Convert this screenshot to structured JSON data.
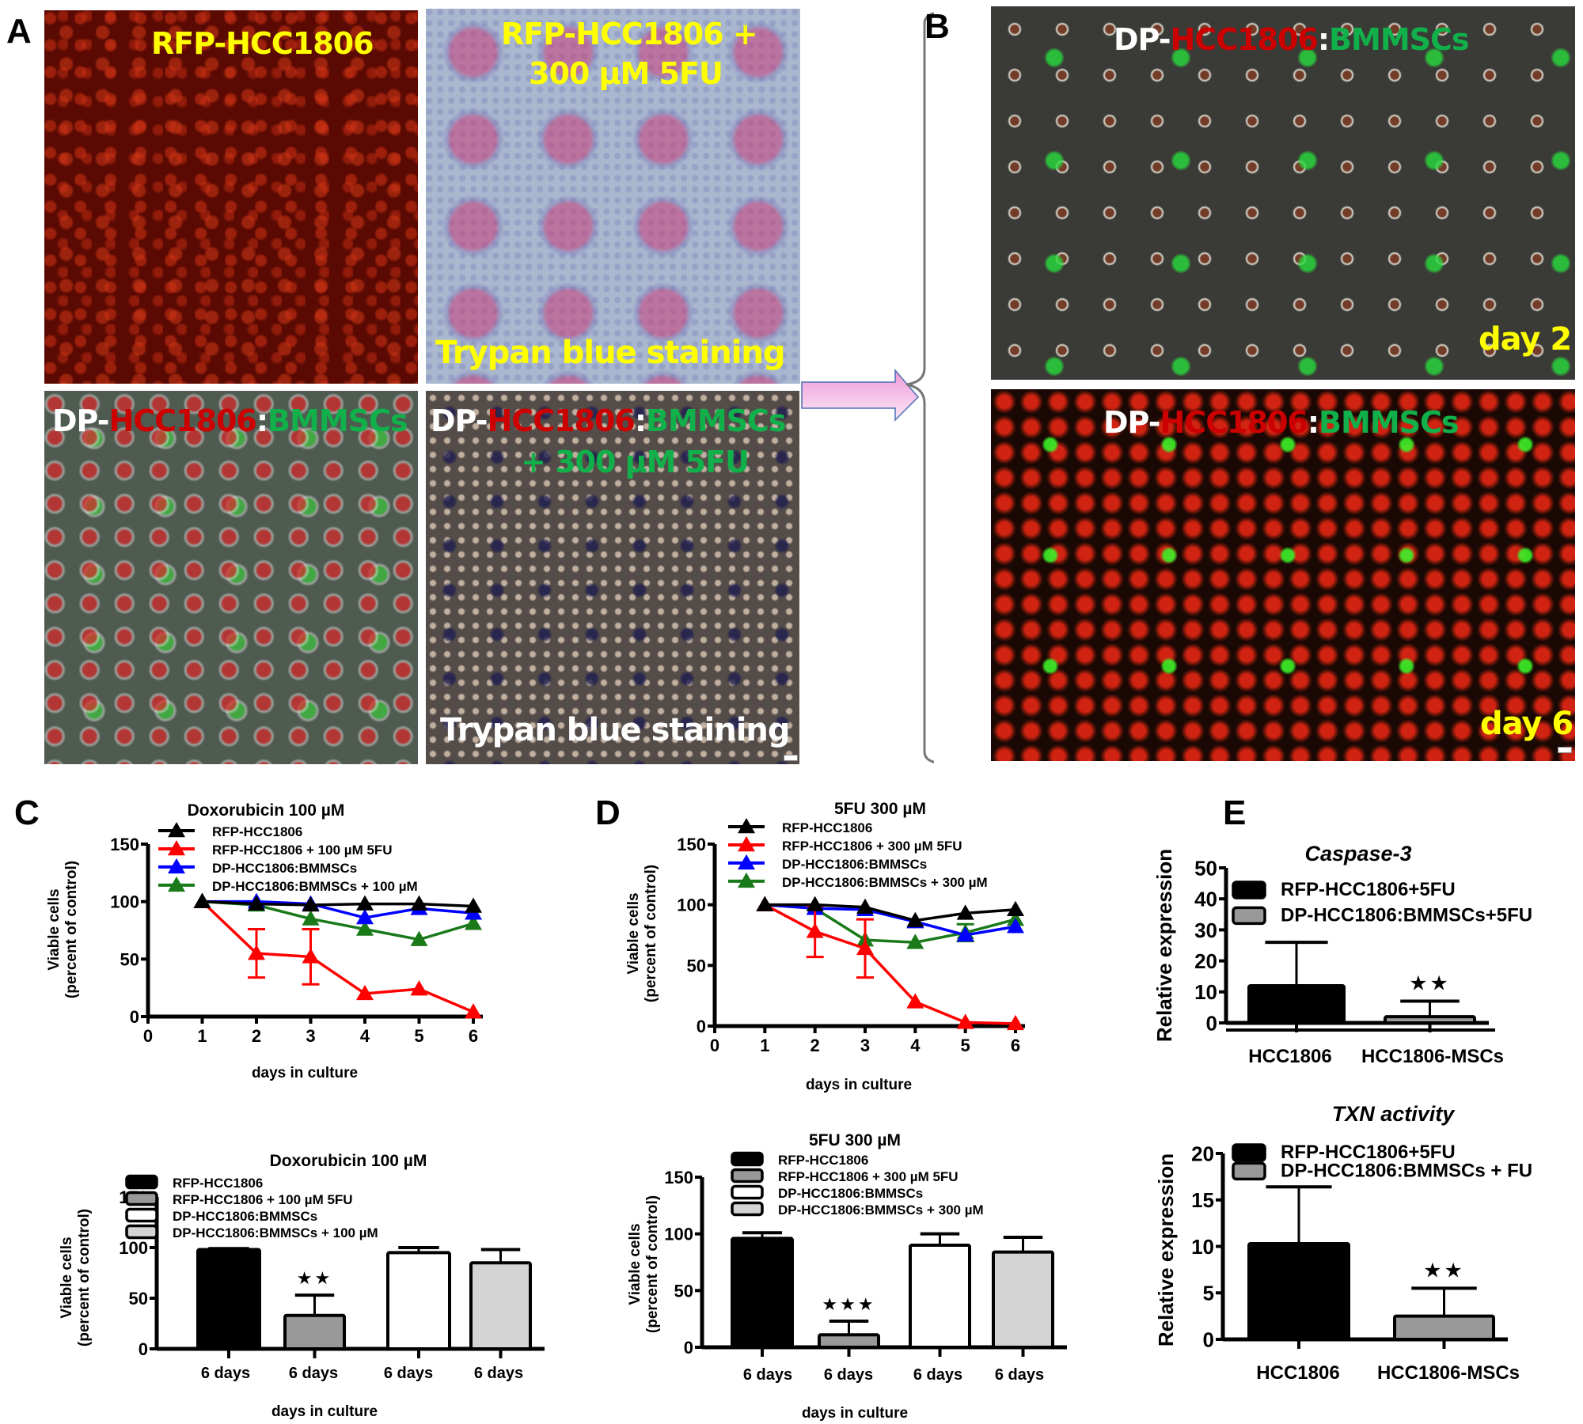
{
  "panels": {
    "A": {
      "letter": "A",
      "images": [
        {
          "title": "RFP-HCC1806",
          "footer": ""
        },
        {
          "title_line1": "RFP-HCC1806 +",
          "title_line2": "300 µM 5FU",
          "footer": "Trypan blue staining"
        },
        {
          "title_parts": [
            "DP-",
            "HCC1806",
            ":",
            "BMMSCs"
          ],
          "footer": ""
        },
        {
          "title_parts": [
            "DP-",
            "HCC1806",
            ":",
            "BMMSCs"
          ],
          "title_line2": "+ 300 µM 5FU",
          "footer": "Trypan blue staining"
        }
      ]
    },
    "B": {
      "letter": "B",
      "images": [
        {
          "title_parts": [
            "DP-",
            "HCC1806",
            ":",
            "BMMSCs"
          ],
          "corner": "day 2"
        },
        {
          "title_parts": [
            "DP-",
            "HCC1806",
            ":",
            "BMMSCs"
          ],
          "corner": "day 6"
        }
      ]
    },
    "C": {
      "letter": "C"
    },
    "D": {
      "letter": "D"
    },
    "E": {
      "letter": "E"
    }
  },
  "colors": {
    "black": "#000000",
    "red": "#ff0000",
    "blue": "#0000ff",
    "green": "#1a7a1a",
    "bar_gray": "#999999",
    "bar_white": "#ffffff",
    "bar_lightgray": "#d4d4d4",
    "label_yellow": "#ffff00",
    "label_red": "#cc0000",
    "label_green": "#11b04a",
    "arrow_pink": "#f0a8e0"
  },
  "chart_data": [
    {
      "id": "C-line",
      "type": "line",
      "title": "Doxorubicin 100 µM",
      "xlabel": "days in culture",
      "ylabel": "Viable cells (percent of control)",
      "x": [
        1,
        2,
        3,
        4,
        5,
        6
      ],
      "xticks": [
        0,
        1,
        2,
        3,
        4,
        5,
        6
      ],
      "yticks": [
        0,
        50,
        100,
        150
      ],
      "ylim": [
        0,
        150
      ],
      "xlim": [
        0,
        6
      ],
      "grid": false,
      "legend_position": "top-left",
      "series": [
        {
          "name": "RFP-HCC1806",
          "color": "#000000",
          "values": [
            100,
            98,
            97,
            98,
            98,
            96
          ]
        },
        {
          "name": "RFP-HCC1806 + 100 µM 5FU",
          "color": "#ff0000",
          "values": [
            100,
            55,
            52,
            20,
            24,
            4
          ],
          "error": [
            0,
            21,
            24,
            0,
            0,
            0
          ]
        },
        {
          "name": "DP-HCC1806:BMMSCs",
          "color": "#0000ff",
          "values": [
            100,
            100,
            98,
            86,
            94,
            90
          ]
        },
        {
          "name": "DP-HCC1806:BMMSCs + 100 µM",
          "color": "#1a7a1a",
          "values": [
            100,
            97,
            85,
            76,
            67,
            81
          ]
        }
      ]
    },
    {
      "id": "D-line",
      "type": "line",
      "title": "5FU 300 µM",
      "xlabel": "days in culture",
      "ylabel": "Viable cells (percent of control)",
      "x": [
        1,
        2,
        3,
        4,
        5,
        6
      ],
      "xticks": [
        0,
        1,
        2,
        3,
        4,
        5,
        6
      ],
      "yticks": [
        0,
        50,
        100,
        150
      ],
      "ylim": [
        0,
        150
      ],
      "xlim": [
        0,
        6
      ],
      "grid": false,
      "legend_position": "top-left",
      "series": [
        {
          "name": "RFP-HCC1806",
          "color": "#000000",
          "values": [
            100,
            100,
            98,
            87,
            93,
            96
          ]
        },
        {
          "name": "RFP-HCC1806 + 300 µM 5FU",
          "color": "#ff0000",
          "values": [
            100,
            78,
            64,
            20,
            3,
            2
          ],
          "error": [
            0,
            21,
            24,
            0,
            0,
            0
          ]
        },
        {
          "name": "DP-HCC1806:BMMSCs",
          "color": "#0000ff",
          "values": [
            100,
            97,
            96,
            86,
            75,
            82
          ]
        },
        {
          "name": "DP-HCC1806:BMMSCs + 300 µM",
          "color": "#1a7a1a",
          "values": [
            100,
            97,
            71,
            69,
            77,
            88
          ],
          "error": [
            0,
            0,
            0,
            0,
            7,
            0
          ]
        }
      ]
    },
    {
      "id": "C-bar",
      "type": "bar",
      "title": "Doxorubicin 100 µM",
      "xlabel": "days in culture",
      "ylabel": "Viable cells (percent of control)",
      "categories": [
        "6 days",
        "6 days",
        "6 days",
        "6 days"
      ],
      "yticks": [
        0,
        50,
        100,
        150
      ],
      "ylim": [
        0,
        150
      ],
      "series": [
        {
          "name": "RFP-HCC1806",
          "fill": "#000000",
          "value": 98,
          "error": 1
        },
        {
          "name": "RFP-HCC1806 + 100 µM 5FU",
          "fill": "#999999",
          "value": 33,
          "error": 20,
          "annotation": "★★"
        },
        {
          "name": "DP-HCC1806:BMMSCs",
          "fill": "#ffffff",
          "value": 95,
          "error": 5
        },
        {
          "name": "DP-HCC1806:BMMSCs + 100 µM",
          "fill": "#d4d4d4",
          "value": 85,
          "error": 13
        }
      ]
    },
    {
      "id": "D-bar",
      "type": "bar",
      "title": "5FU 300 µM",
      "xlabel": "days in culture",
      "ylabel": "Viable cells (percent of control)",
      "categories": [
        "6 days",
        "6 days",
        "6 days",
        "6 days"
      ],
      "yticks": [
        0,
        50,
        100,
        150
      ],
      "ylim": [
        0,
        150
      ],
      "series": [
        {
          "name": "RFP-HCC1806",
          "fill": "#000000",
          "value": 96,
          "error": 5
        },
        {
          "name": "RFP-HCC1806 + 300 µM 5FU",
          "fill": "#999999",
          "value": 11,
          "error": 12,
          "annotation": "★★★"
        },
        {
          "name": "DP-HCC1806:BMMSCs",
          "fill": "#ffffff",
          "value": 90,
          "error": 10
        },
        {
          "name": "DP-HCC1806:BMMSCs + 300 µM",
          "fill": "#d4d4d4",
          "value": 84,
          "error": 13
        }
      ]
    },
    {
      "id": "E-caspase",
      "type": "bar",
      "title": "Caspase-3",
      "xlabel": "",
      "ylabel": "Relative expression",
      "categories": [
        "HCC1806",
        "HCC1806-MSCs"
      ],
      "yticks": [
        0,
        10,
        20,
        30,
        40,
        50
      ],
      "ylim": [
        0,
        50
      ],
      "series": [
        {
          "name": "RFP-HCC1806+5FU",
          "fill": "#000000",
          "value": 12,
          "error": 14
        },
        {
          "name": "DP-HCC1806:BMMSCs+5FU",
          "fill": "#999999",
          "value": 2,
          "error": 5,
          "annotation": "★★"
        }
      ]
    },
    {
      "id": "E-txn",
      "type": "bar",
      "title": "TXN activity",
      "xlabel": "",
      "ylabel": "Relative expression",
      "categories": [
        "HCC1806",
        "HCC1806-MSCs"
      ],
      "yticks": [
        0,
        5,
        10,
        15,
        20
      ],
      "ylim": [
        0,
        20
      ],
      "series": [
        {
          "name": "RFP-HCC1806+5FU",
          "fill": "#000000",
          "value": 10.3,
          "error": 6.1
        },
        {
          "name": "DP-HCC1806:BMMSCs + FU",
          "fill": "#999999",
          "value": 2.5,
          "error": 3.0,
          "annotation": "★★"
        }
      ]
    }
  ]
}
